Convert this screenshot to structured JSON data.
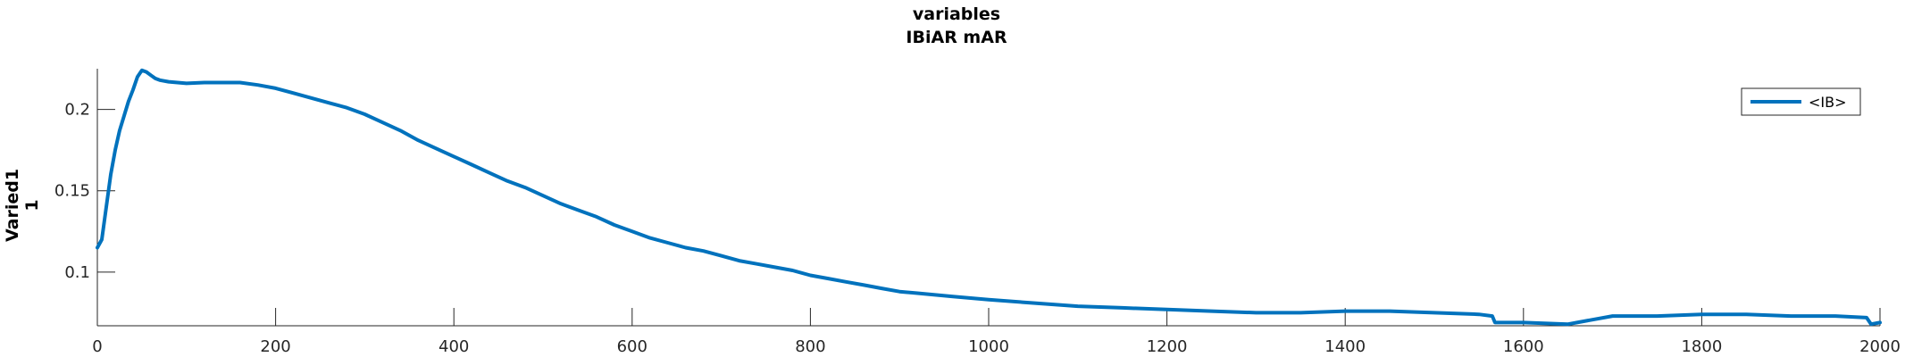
{
  "chart_data": {
    "type": "line",
    "title": "variables",
    "subtitle": "IBiAR mAR",
    "ylabel_line1": "Varied1",
    "ylabel_line2": "1",
    "xlabel": "",
    "xlim": [
      0,
      2000
    ],
    "ylim": [
      0.067,
      0.225
    ],
    "xticks": [
      0,
      200,
      400,
      600,
      800,
      1000,
      1200,
      1400,
      1600,
      1800,
      2000
    ],
    "xtick_labels": [
      "0",
      "200",
      "400",
      "600",
      "800",
      "1000",
      "1200",
      "1400",
      "1600",
      "1800",
      "2000"
    ],
    "yticks": [
      0.1,
      0.15,
      0.2
    ],
    "ytick_labels": [
      "0.1",
      "0.15",
      "0.2"
    ],
    "grid": false,
    "legend_position": "top-right",
    "series": [
      {
        "name": "<IB>",
        "color": "#0072bd",
        "x": [
          0,
          5,
          10,
          15,
          20,
          25,
          30,
          35,
          40,
          45,
          50,
          55,
          60,
          65,
          70,
          80,
          100,
          120,
          140,
          160,
          180,
          200,
          220,
          240,
          260,
          280,
          300,
          320,
          340,
          360,
          380,
          400,
          420,
          440,
          460,
          480,
          500,
          520,
          540,
          560,
          580,
          600,
          620,
          640,
          660,
          680,
          700,
          720,
          740,
          760,
          780,
          800,
          820,
          840,
          860,
          880,
          900,
          920,
          940,
          960,
          980,
          1000,
          1050,
          1100,
          1150,
          1200,
          1250,
          1300,
          1350,
          1400,
          1450,
          1500,
          1550,
          1565,
          1568,
          1600,
          1650,
          1660,
          1700,
          1750,
          1800,
          1850,
          1900,
          1950,
          1985,
          1990,
          2000
        ],
        "values": [
          0.115,
          0.12,
          0.14,
          0.16,
          0.175,
          0.187,
          0.196,
          0.205,
          0.212,
          0.22,
          0.224,
          0.223,
          0.221,
          0.219,
          0.218,
          0.217,
          0.216,
          0.2165,
          0.2165,
          0.2165,
          0.215,
          0.213,
          0.21,
          0.207,
          0.204,
          0.201,
          0.197,
          0.192,
          0.187,
          0.181,
          0.176,
          0.171,
          0.166,
          0.161,
          0.156,
          0.152,
          0.147,
          0.142,
          0.138,
          0.134,
          0.129,
          0.125,
          0.121,
          0.118,
          0.115,
          0.113,
          0.11,
          0.107,
          0.105,
          0.103,
          0.101,
          0.098,
          0.096,
          0.094,
          0.092,
          0.09,
          0.088,
          0.087,
          0.086,
          0.085,
          0.084,
          0.083,
          0.081,
          0.079,
          0.078,
          0.077,
          0.076,
          0.075,
          0.075,
          0.076,
          0.076,
          0.075,
          0.074,
          0.073,
          0.069,
          0.069,
          0.068,
          0.069,
          0.073,
          0.073,
          0.074,
          0.074,
          0.073,
          0.073,
          0.072,
          0.068,
          0.069
        ]
      }
    ]
  }
}
